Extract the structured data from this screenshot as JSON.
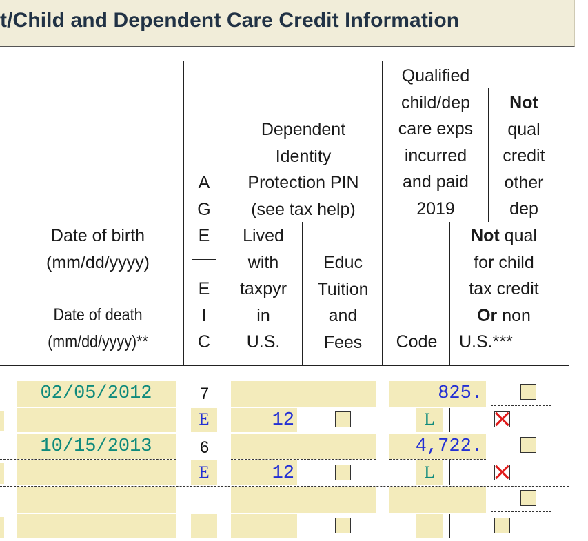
{
  "title": "t/Child and Dependent Care Credit Information",
  "headers": {
    "dob": [
      "Date of birth",
      "(mm/dd/yyyy)"
    ],
    "dod": [
      "Date of death",
      "(mm/dd/yyyy)**"
    ],
    "age_eic": [
      "A",
      "G",
      "E",
      "E",
      "I",
      "C"
    ],
    "ip_pin": [
      "Dependent",
      "Identity",
      "Protection PIN",
      "(see tax help)"
    ],
    "lived": [
      "Lived",
      "with",
      "taxpyr",
      "in",
      "U.S."
    ],
    "educ": [
      "Educ",
      "Tuition",
      "and",
      "Fees"
    ],
    "qualified": [
      "Qualified",
      "child/dep",
      "care exps",
      "incurred",
      "and paid",
      "2019"
    ],
    "code": "Code",
    "not_qual_other_bold": "Not",
    "not_qual_other": [
      "qual",
      "credit",
      "other",
      "dep"
    ],
    "not_qual_child_bold": "Not",
    "not_qual_child_rest": " qual",
    "not_qual_child": [
      "for child",
      "tax credit"
    ],
    "or_bold": "Or",
    "or_rest": " non",
    "non_us": "U.S.***"
  },
  "rows": [
    {
      "dob": "02/05/2012",
      "age": "7",
      "eic": "E",
      "lived": "12",
      "care_exps": "825.",
      "code": "L",
      "educ_checked": false,
      "not_qual_other_checked": false,
      "not_qual_child_checked": true
    },
    {
      "dob": "10/15/2013",
      "age": "6",
      "eic": "E",
      "lived": "12",
      "care_exps": "4,722.",
      "code": "L",
      "educ_checked": false,
      "not_qual_other_checked": false,
      "not_qual_child_checked": true
    },
    {
      "dob": "",
      "age": "",
      "eic": "",
      "lived": "",
      "care_exps": "",
      "code": "",
      "educ_checked": false,
      "not_qual_other_checked": false,
      "not_qual_child_checked": false
    }
  ],
  "colors": {
    "field_fill": "#f3ebbb",
    "title_bg": "#f1edd9",
    "entered_teal": "#0f8a7c",
    "entered_blue": "#2330d4",
    "check_red": "#e01b1b"
  }
}
